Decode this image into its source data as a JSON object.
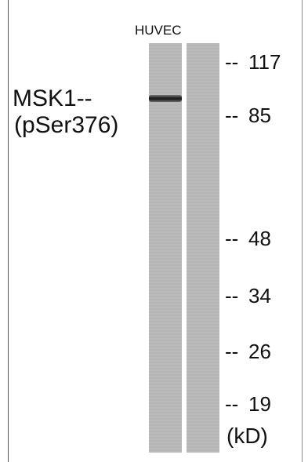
{
  "lane_label": "HUVEC",
  "protein": {
    "name": "MSK1--",
    "site": "(pSer376)"
  },
  "markers": [
    {
      "dash": "--",
      "value": "117"
    },
    {
      "dash": "--",
      "value": "85"
    },
    {
      "dash": "--",
      "value": "48"
    },
    {
      "dash": "--",
      "value": "34"
    },
    {
      "dash": "--",
      "value": "26"
    },
    {
      "dash": "--",
      "value": "19"
    }
  ],
  "unit": "(kD)"
}
